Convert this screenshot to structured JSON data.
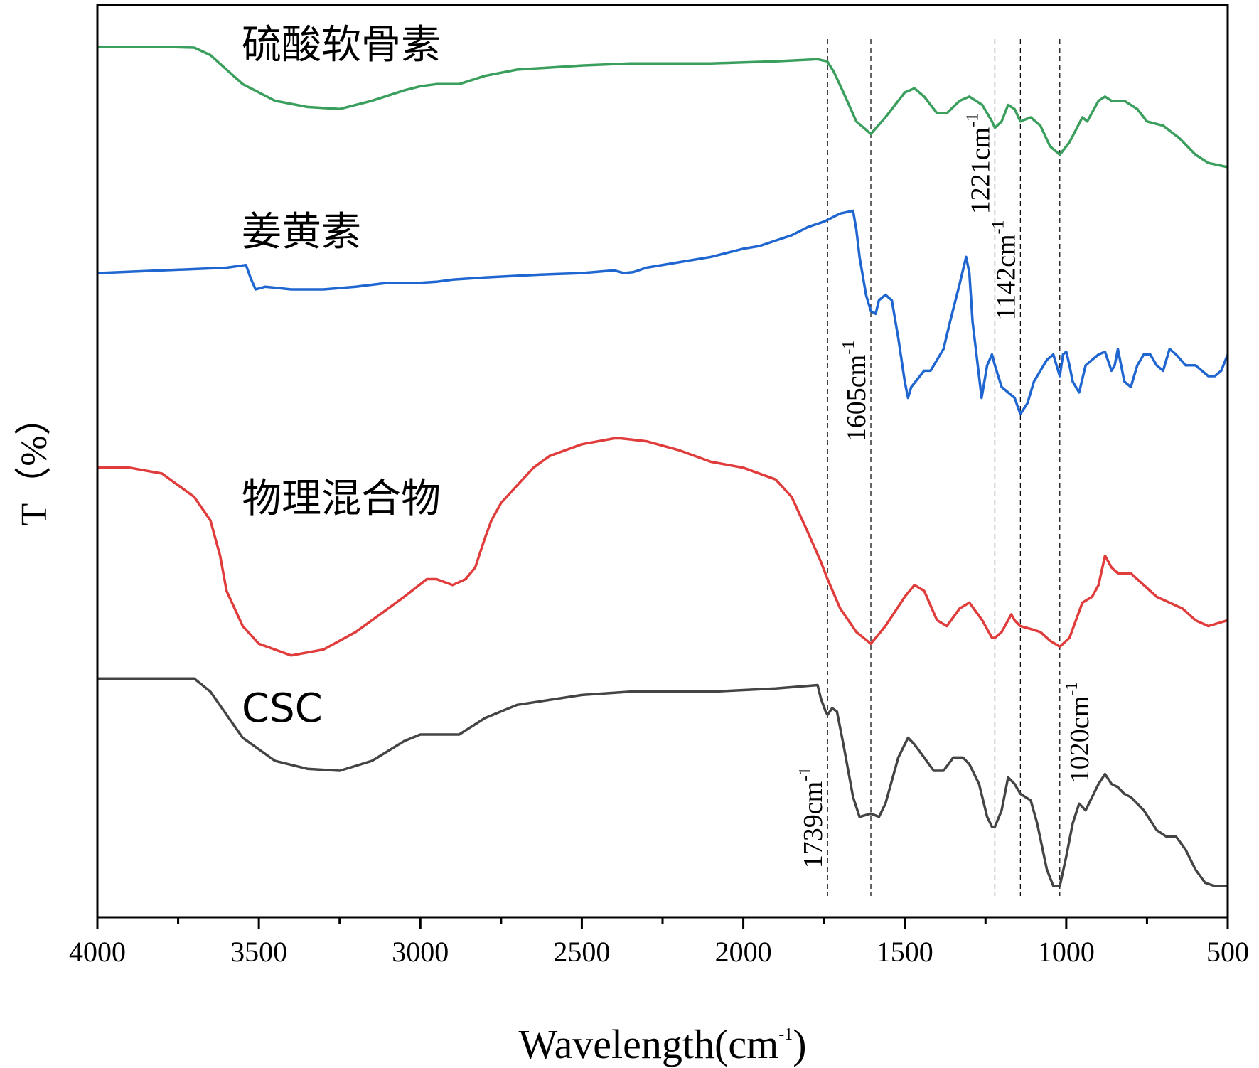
{
  "chart_data": {
    "type": "line",
    "xlabel": "Wavelength(cm",
    "xlabel_sup": "-1",
    "xlabel_close": ")",
    "ylabel": "T（%）",
    "xlim": [
      4000,
      500
    ],
    "x_ticks": [
      "4000",
      "3500",
      "3000",
      "2500",
      "2000",
      "1500",
      "1000",
      "500"
    ],
    "x_tick_values": [
      4000,
      3500,
      3000,
      2500,
      2000,
      1500,
      1000,
      500
    ],
    "grid": false,
    "legend": "inline labels",
    "series": [
      {
        "name": "硫酸软骨素",
        "color": "#3a9e5c",
        "offset": 0,
        "points": [
          [
            4000,
            95
          ],
          [
            3800,
            95
          ],
          [
            3700,
            94.8
          ],
          [
            3650,
            93
          ],
          [
            3550,
            86
          ],
          [
            3450,
            82
          ],
          [
            3350,
            80.5
          ],
          [
            3250,
            80
          ],
          [
            3150,
            82
          ],
          [
            3050,
            84.5
          ],
          [
            3000,
            85.5
          ],
          [
            2950,
            86
          ],
          [
            2880,
            86
          ],
          [
            2800,
            88
          ],
          [
            2700,
            89.5
          ],
          [
            2500,
            90.5
          ],
          [
            2350,
            91
          ],
          [
            2100,
            91
          ],
          [
            1900,
            91.5
          ],
          [
            1770,
            92
          ],
          [
            1740,
            91.5
          ],
          [
            1720,
            89
          ],
          [
            1690,
            84
          ],
          [
            1650,
            77
          ],
          [
            1605,
            74
          ],
          [
            1560,
            78
          ],
          [
            1500,
            84
          ],
          [
            1470,
            85
          ],
          [
            1440,
            83
          ],
          [
            1400,
            79
          ],
          [
            1370,
            79
          ],
          [
            1330,
            82
          ],
          [
            1300,
            83
          ],
          [
            1260,
            81
          ],
          [
            1230,
            77
          ],
          [
            1221,
            75.5
          ],
          [
            1200,
            77
          ],
          [
            1180,
            81
          ],
          [
            1160,
            80
          ],
          [
            1142,
            77
          ],
          [
            1110,
            78
          ],
          [
            1080,
            76
          ],
          [
            1050,
            71
          ],
          [
            1020,
            69
          ],
          [
            990,
            72
          ],
          [
            950,
            78
          ],
          [
            935,
            77
          ],
          [
            900,
            82
          ],
          [
            880,
            83
          ],
          [
            860,
            82
          ],
          [
            820,
            82
          ],
          [
            780,
            80
          ],
          [
            750,
            77
          ],
          [
            700,
            76
          ],
          [
            650,
            73
          ],
          [
            600,
            69
          ],
          [
            560,
            67
          ],
          [
            500,
            66
          ]
        ]
      },
      {
        "name": "姜黄素",
        "color": "#1f66d1",
        "offset": 0,
        "points": [
          [
            4000,
            97
          ],
          [
            3800,
            97.5
          ],
          [
            3600,
            98
          ],
          [
            3540,
            98.5
          ],
          [
            3525,
            96
          ],
          [
            3510,
            94
          ],
          [
            3480,
            94.5
          ],
          [
            3400,
            94
          ],
          [
            3300,
            94
          ],
          [
            3200,
            94.5
          ],
          [
            3100,
            95.2
          ],
          [
            3000,
            95.2
          ],
          [
            2950,
            95.4
          ],
          [
            2900,
            95.8
          ],
          [
            2800,
            96.2
          ],
          [
            2700,
            96.5
          ],
          [
            2600,
            96.8
          ],
          [
            2500,
            97
          ],
          [
            2400,
            97.5
          ],
          [
            2370,
            97
          ],
          [
            2340,
            97.2
          ],
          [
            2300,
            98
          ],
          [
            2200,
            99
          ],
          [
            2100,
            100
          ],
          [
            2000,
            101.5
          ],
          [
            1950,
            102
          ],
          [
            1900,
            103
          ],
          [
            1850,
            104
          ],
          [
            1800,
            105.5
          ],
          [
            1750,
            106.5
          ],
          [
            1700,
            108
          ],
          [
            1660,
            108.5
          ],
          [
            1650,
            105
          ],
          [
            1640,
            100
          ],
          [
            1620,
            93
          ],
          [
            1605,
            90
          ],
          [
            1590,
            89.5
          ],
          [
            1580,
            92
          ],
          [
            1560,
            93
          ],
          [
            1540,
            92
          ],
          [
            1520,
            85
          ],
          [
            1500,
            77
          ],
          [
            1490,
            74
          ],
          [
            1480,
            76
          ],
          [
            1460,
            77.5
          ],
          [
            1440,
            79
          ],
          [
            1420,
            79
          ],
          [
            1400,
            81
          ],
          [
            1380,
            83
          ],
          [
            1360,
            88
          ],
          [
            1330,
            95
          ],
          [
            1310,
            100
          ],
          [
            1300,
            97
          ],
          [
            1290,
            88
          ],
          [
            1270,
            78
          ],
          [
            1262,
            74
          ],
          [
            1245,
            80
          ],
          [
            1230,
            82
          ],
          [
            1221,
            80
          ],
          [
            1200,
            76
          ],
          [
            1180,
            75
          ],
          [
            1160,
            74
          ],
          [
            1142,
            71
          ],
          [
            1120,
            73
          ],
          [
            1100,
            77
          ],
          [
            1080,
            79
          ],
          [
            1060,
            81
          ],
          [
            1040,
            82
          ],
          [
            1030,
            80
          ],
          [
            1020,
            78
          ],
          [
            1010,
            82
          ],
          [
            1000,
            82.5
          ],
          [
            990,
            80
          ],
          [
            980,
            77
          ],
          [
            960,
            75
          ],
          [
            940,
            80
          ],
          [
            920,
            81
          ],
          [
            900,
            82
          ],
          [
            880,
            82.5
          ],
          [
            860,
            79
          ],
          [
            850,
            80
          ],
          [
            840,
            83
          ],
          [
            820,
            77
          ],
          [
            800,
            76
          ],
          [
            780,
            80
          ],
          [
            760,
            82
          ],
          [
            740,
            82
          ],
          [
            720,
            80
          ],
          [
            700,
            79
          ],
          [
            680,
            83
          ],
          [
            660,
            82
          ],
          [
            630,
            80
          ],
          [
            600,
            80
          ],
          [
            580,
            79
          ],
          [
            560,
            78
          ],
          [
            540,
            78
          ],
          [
            520,
            79
          ],
          [
            500,
            82
          ]
        ]
      },
      {
        "name": "物理混合物",
        "color": "#e03c3c",
        "offset": 0,
        "points": [
          [
            4000,
            85
          ],
          [
            3900,
            85
          ],
          [
            3800,
            84
          ],
          [
            3700,
            80
          ],
          [
            3650,
            76
          ],
          [
            3620,
            70
          ],
          [
            3600,
            64
          ],
          [
            3550,
            58
          ],
          [
            3500,
            55
          ],
          [
            3400,
            53
          ],
          [
            3300,
            54
          ],
          [
            3200,
            57
          ],
          [
            3100,
            61
          ],
          [
            3050,
            63
          ],
          [
            2980,
            66
          ],
          [
            2950,
            66
          ],
          [
            2900,
            65
          ],
          [
            2860,
            66
          ],
          [
            2830,
            68
          ],
          [
            2800,
            73
          ],
          [
            2780,
            76
          ],
          [
            2750,
            79
          ],
          [
            2700,
            82
          ],
          [
            2650,
            85
          ],
          [
            2600,
            87
          ],
          [
            2500,
            89
          ],
          [
            2400,
            90
          ],
          [
            2380,
            90
          ],
          [
            2300,
            89.5
          ],
          [
            2200,
            88
          ],
          [
            2100,
            86
          ],
          [
            2000,
            85
          ],
          [
            1900,
            83
          ],
          [
            1850,
            80
          ],
          [
            1800,
            74
          ],
          [
            1760,
            69
          ],
          [
            1739,
            66
          ],
          [
            1700,
            61
          ],
          [
            1650,
            57
          ],
          [
            1605,
            55
          ],
          [
            1560,
            58
          ],
          [
            1500,
            63
          ],
          [
            1470,
            65
          ],
          [
            1440,
            64
          ],
          [
            1400,
            59
          ],
          [
            1370,
            58
          ],
          [
            1330,
            61
          ],
          [
            1300,
            62
          ],
          [
            1260,
            59
          ],
          [
            1230,
            56
          ],
          [
            1221,
            56
          ],
          [
            1200,
            57
          ],
          [
            1170,
            60
          ],
          [
            1160,
            59
          ],
          [
            1142,
            58
          ],
          [
            1110,
            57.5
          ],
          [
            1080,
            57
          ],
          [
            1050,
            55.5
          ],
          [
            1020,
            54.5
          ],
          [
            990,
            56
          ],
          [
            950,
            62
          ],
          [
            920,
            63
          ],
          [
            900,
            65
          ],
          [
            880,
            70
          ],
          [
            860,
            68
          ],
          [
            840,
            67
          ],
          [
            800,
            67
          ],
          [
            760,
            65
          ],
          [
            720,
            63
          ],
          [
            680,
            62
          ],
          [
            640,
            61
          ],
          [
            600,
            59
          ],
          [
            560,
            58
          ],
          [
            500,
            59
          ]
        ]
      },
      {
        "name": "CSC",
        "color": "#444444",
        "offset": 0,
        "points": [
          [
            4000,
            33
          ],
          [
            3800,
            33
          ],
          [
            3700,
            33
          ],
          [
            3650,
            31
          ],
          [
            3550,
            24
          ],
          [
            3450,
            20.5
          ],
          [
            3350,
            19.3
          ],
          [
            3250,
            19
          ],
          [
            3150,
            20.5
          ],
          [
            3050,
            23.5
          ],
          [
            3000,
            24.5
          ],
          [
            2950,
            24.5
          ],
          [
            2880,
            24.5
          ],
          [
            2800,
            27
          ],
          [
            2700,
            29
          ],
          [
            2500,
            30.5
          ],
          [
            2350,
            31
          ],
          [
            2100,
            31
          ],
          [
            1900,
            31.5
          ],
          [
            1770,
            32
          ],
          [
            1760,
            30
          ],
          [
            1745,
            28
          ],
          [
            1739,
            27.5
          ],
          [
            1725,
            28.5
          ],
          [
            1710,
            28
          ],
          [
            1690,
            23
          ],
          [
            1660,
            15
          ],
          [
            1640,
            12
          ],
          [
            1605,
            12.5
          ],
          [
            1580,
            12
          ],
          [
            1560,
            14
          ],
          [
            1520,
            21
          ],
          [
            1490,
            24
          ],
          [
            1470,
            23
          ],
          [
            1440,
            21
          ],
          [
            1410,
            19
          ],
          [
            1380,
            19
          ],
          [
            1350,
            21
          ],
          [
            1320,
            21
          ],
          [
            1300,
            20
          ],
          [
            1270,
            17
          ],
          [
            1245,
            12
          ],
          [
            1230,
            10.5
          ],
          [
            1221,
            10.5
          ],
          [
            1200,
            13
          ],
          [
            1180,
            18
          ],
          [
            1160,
            17
          ],
          [
            1142,
            15.5
          ],
          [
            1110,
            14.5
          ],
          [
            1090,
            11
          ],
          [
            1060,
            4
          ],
          [
            1040,
            1.5
          ],
          [
            1020,
            1.5
          ],
          [
            1000,
            6
          ],
          [
            980,
            11
          ],
          [
            960,
            14
          ],
          [
            940,
            13
          ],
          [
            920,
            15
          ],
          [
            900,
            17
          ],
          [
            880,
            18.5
          ],
          [
            860,
            17
          ],
          [
            840,
            16.5
          ],
          [
            820,
            15.5
          ],
          [
            800,
            15
          ],
          [
            760,
            13
          ],
          [
            720,
            10
          ],
          [
            690,
            9
          ],
          [
            660,
            9
          ],
          [
            630,
            7
          ],
          [
            600,
            4
          ],
          [
            570,
            2
          ],
          [
            540,
            1.5
          ],
          [
            500,
            1.5
          ]
        ]
      }
    ],
    "reference_lines": [
      {
        "x": 1739,
        "label": "1739cm",
        "sup": "-1"
      },
      {
        "x": 1605,
        "label": "1605cm",
        "sup": "-1"
      },
      {
        "x": 1221,
        "label": "1221cm",
        "sup": "-1"
      },
      {
        "x": 1142,
        "label": "1142cm",
        "sup": "-1"
      },
      {
        "x": 1020,
        "label": "1020cm",
        "sup": "-1"
      }
    ],
    "y_value_range": [
      0,
      110
    ]
  }
}
